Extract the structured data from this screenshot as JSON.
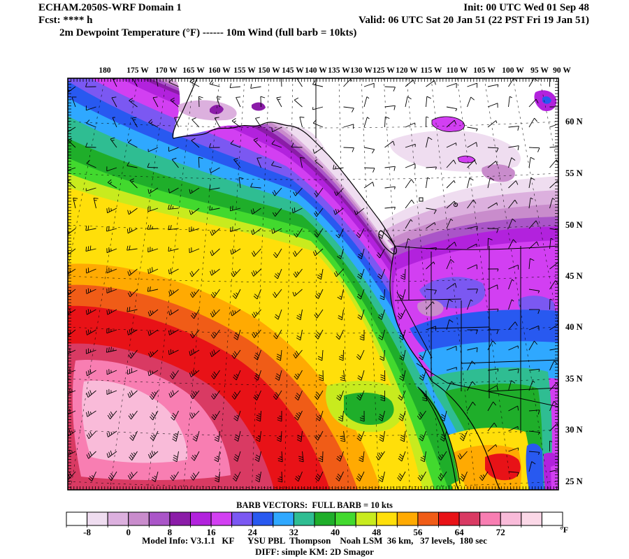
{
  "header": {
    "line1_left": "ECHAM.2050S-WRF Domain 1",
    "line1_right": "Init: 00 UTC Wed 01 Sep 48",
    "line2_left": "Fcst: **** h",
    "line2_right": "Valid: 06 UTC Sat 20 Jan 51 (22 PST Fri 19 Jan 51)",
    "line3": "2m Dewpoint Temperature (°F) ------ 10m Wind (full barb = 10kts)"
  },
  "chart_data": {
    "type": "heatmap",
    "title": "2m Dewpoint Temperature (°F)",
    "wind_overlay": "10m Wind (full barb = 10kts)",
    "x_tick_labels": [
      "180",
      "175 W",
      "170 W",
      "165 W",
      "160 W",
      "155 W",
      "150 W",
      "145 W",
      "140 W",
      "135 W",
      "130 W",
      "125 W",
      "120 W",
      "115 W",
      "110 W",
      "105 W",
      "100 W",
      "95 W",
      "90 W"
    ],
    "y_tick_labels": [
      "60 N",
      "55 N",
      "50 N",
      "45 N",
      "40 N",
      "35 N",
      "30 N",
      "25 N"
    ],
    "barb_caption": "BARB VECTORS:  FULL BARB = 10 kts",
    "colorbar": {
      "unit": "°F",
      "interval_per_cell_F": 4,
      "tick_labels": [
        "-8",
        "0",
        "8",
        "16",
        "24",
        "32",
        "40",
        "48",
        "56",
        "64",
        "72"
      ],
      "cell_colors": [
        "#ffffff",
        "#efddf0",
        "#dcb0de",
        "#c98ccc",
        "#aa55c8",
        "#8b1ca8",
        "#b222dd",
        "#d23ff2",
        "#7b58f2",
        "#2859f0",
        "#2fa8ff",
        "#2fbd92",
        "#1fae2a",
        "#42d92e",
        "#c8eb1e",
        "#ffdf0a",
        "#ffaa02",
        "#f05c17",
        "#e81217",
        "#d93a63",
        "#f87eb2",
        "#f9bbd9",
        "#fbd8e7",
        "#ffffff"
      ]
    }
  },
  "footer": {
    "line1": "Model Info: V3.1.1   KF      YSU PBL  Thompson    Noah LSM  36 km,   37 levels,  180 sec",
    "line2": "DIFF: simple KM: 2D Smagor"
  }
}
